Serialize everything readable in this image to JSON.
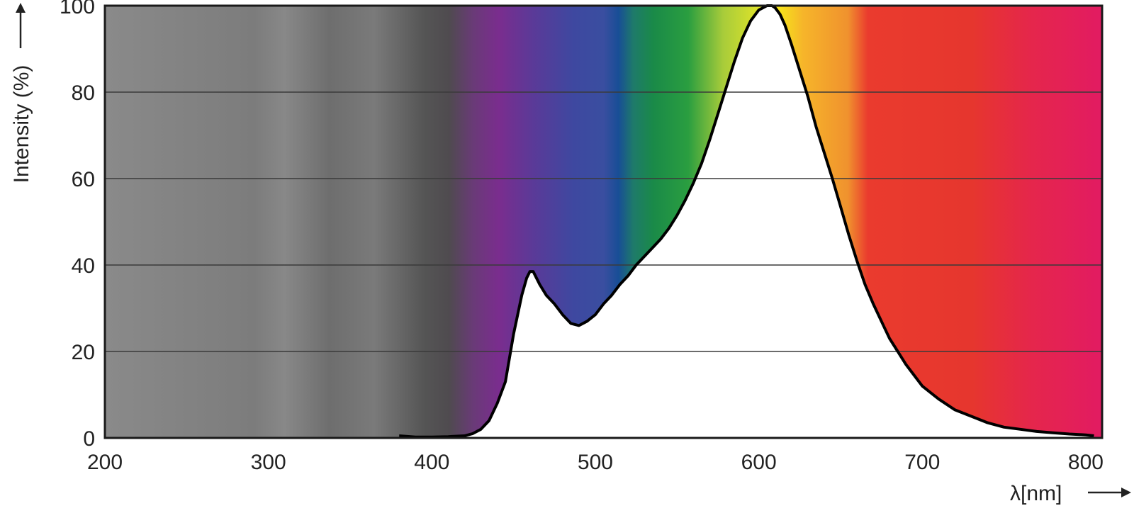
{
  "chart_data": {
    "type": "area",
    "title": "",
    "xlabel": "λ[nm]",
    "ylabel": "Intensity (%)",
    "xlim": [
      200,
      810
    ],
    "ylim": [
      0,
      100
    ],
    "x_ticks": [
      200,
      300,
      400,
      500,
      600,
      700,
      800
    ],
    "y_ticks": [
      0,
      20,
      40,
      60,
      80,
      100
    ],
    "grid": "horizontal",
    "background": "visible-spectrum color gradient (UV grey to red)",
    "curve_color": "#000000",
    "fill_under_curve": "#ffffff",
    "series": [
      {
        "x": [
          380,
          390,
          400,
          410,
          420,
          425,
          430,
          435,
          440,
          445,
          450,
          455,
          458,
          460,
          462,
          464,
          466,
          470,
          475,
          480,
          485,
          490,
          495,
          500,
          505,
          510,
          515,
          520,
          525,
          530,
          535,
          540,
          545,
          550,
          555,
          560,
          565,
          570,
          575,
          580,
          585,
          590,
          595,
          600,
          605,
          608,
          610,
          613,
          616,
          620,
          625,
          630,
          635,
          640,
          645,
          650,
          655,
          660,
          665,
          670,
          675,
          680,
          685,
          690,
          695,
          700,
          710,
          720,
          730,
          740,
          750,
          760,
          770,
          780,
          790,
          800,
          805
        ],
        "values": [
          0.5,
          0.2,
          0.2,
          0.3,
          0.5,
          1,
          2,
          4,
          8,
          13,
          24,
          33,
          37,
          38.5,
          38.5,
          37,
          35.5,
          33,
          31,
          28.5,
          26.5,
          26,
          27,
          28.5,
          31,
          33,
          35.5,
          37.5,
          40,
          42,
          44,
          46,
          48.5,
          51.5,
          55,
          59,
          63.5,
          69,
          75,
          81,
          87,
          92.5,
          96.5,
          99,
          100,
          100,
          99.5,
          98,
          95.5,
          91,
          85,
          79,
          72,
          66,
          60,
          53.5,
          47,
          41,
          35.5,
          31,
          27,
          23,
          20,
          17,
          14.5,
          12,
          9,
          6.5,
          5,
          3.5,
          2.5,
          2,
          1.5,
          1.2,
          0.9,
          0.7,
          0.5
        ]
      }
    ]
  }
}
